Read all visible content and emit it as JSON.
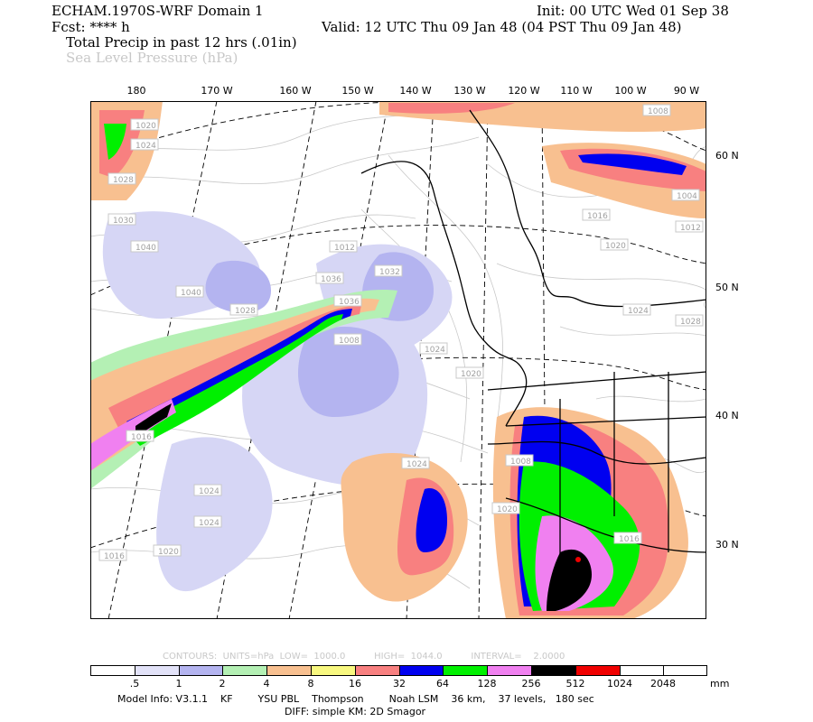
{
  "header": {
    "model": "ECHAM.1970S-WRF Domain 1",
    "fcst": "Fcst: **** h",
    "field1": "Total Precip in past 12 hrs (.01in)",
    "field2": "Sea Level Pressure (hPa)",
    "init": "Init: 00 UTC Wed 01 Sep 38",
    "valid": "Valid: 12 UTC Thu 09 Jan 48 (04 PST Thu 09 Jan 48)"
  },
  "longitude_labels": [
    "180",
    "170 W",
    "160 W",
    "150 W",
    "140 W",
    "130 W",
    "120 W",
    "110 W",
    "100 W",
    "90 W"
  ],
  "latitude_labels": [
    "60 N",
    "50 N",
    "40 N",
    "30 N"
  ],
  "pressure_labels": [
    "1020",
    "1024",
    "1028",
    "1030",
    "1040",
    "1040",
    "1036",
    "1036",
    "1032",
    "1028",
    "1024",
    "1020",
    "1024",
    "1020",
    "1016",
    "1012",
    "1008",
    "1004",
    "1020",
    "1024",
    "1028",
    "1016",
    "1024",
    "1024",
    "1020",
    "1016",
    "1012",
    "1008",
    "1016",
    "1008"
  ],
  "contours_info": "CONTOURS:  UNITS=hPa  LOW=  1000.0          HIGH=  1044.0          INTERVAL=    2.0000",
  "colorbar": {
    "ticks": [
      ".5",
      "1",
      "2",
      "4",
      "8",
      "16",
      "32",
      "64",
      "128",
      "256",
      "512",
      "1024",
      "2048"
    ],
    "units": "mm",
    "colors": [
      "#ffffff",
      "#e2e2f8",
      "#b4b4f0",
      "#b4f0b4",
      "#f8c090",
      "#f8f880",
      "#f88080",
      "#0000f0",
      "#00f000",
      "#f080f0",
      "#000000",
      "#f00000",
      "#ffffff"
    ]
  },
  "footer": {
    "line1": "Model Info: V3.1.1    KF        YSU PBL    Thompson        Noah LSM    36 km,    37 levels,   180 sec",
    "line2": "DIFF: simple KM: 2D Smagor"
  }
}
